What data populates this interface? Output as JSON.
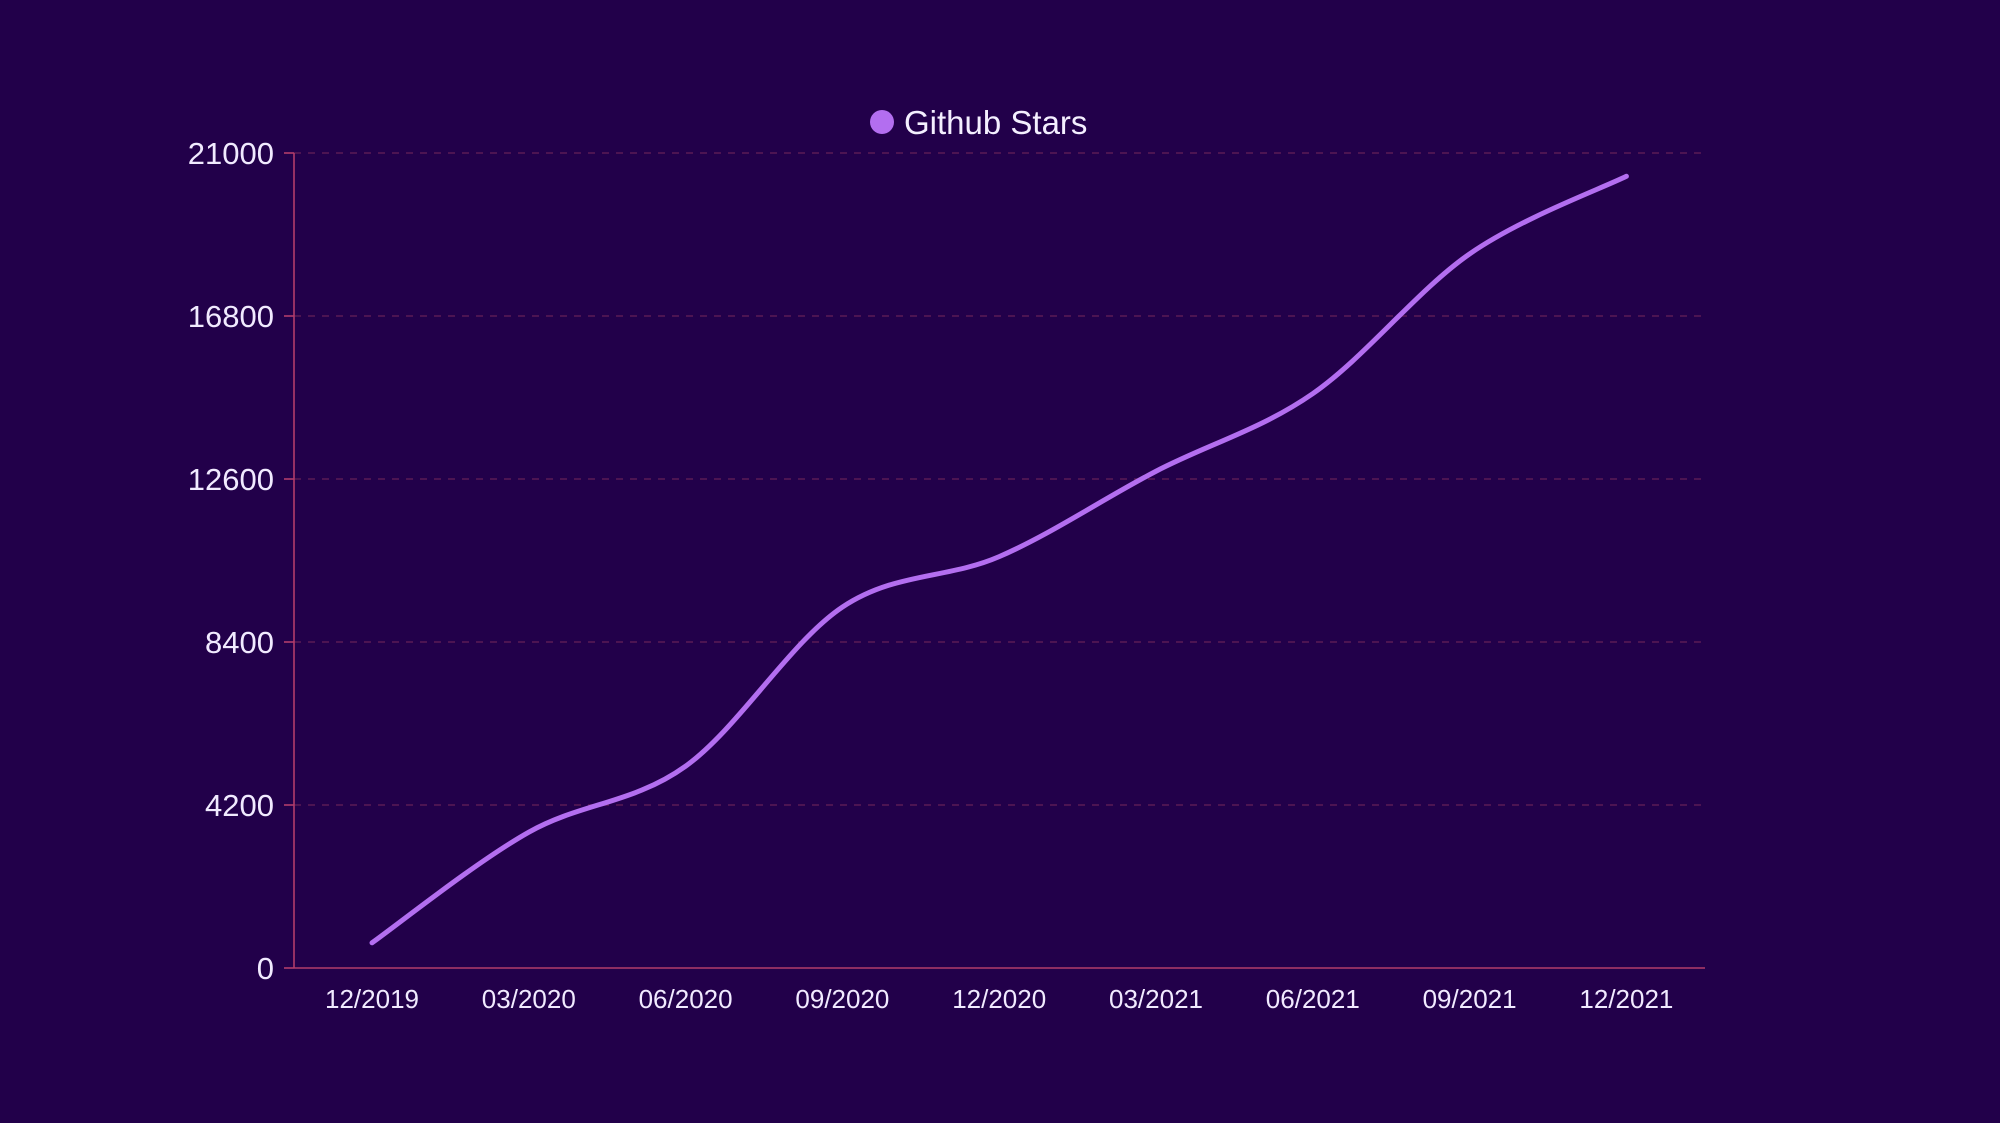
{
  "chart_data": {
    "type": "line",
    "categories": [
      "12/2019",
      "03/2020",
      "06/2020",
      "09/2020",
      "12/2020",
      "03/2021",
      "06/2021",
      "09/2021",
      "12/2021"
    ],
    "series": [
      {
        "name": "Github Stars",
        "color": "#b36ef0",
        "values": [
          650,
          3500,
          5200,
          9300,
          10600,
          12800,
          14800,
          18400,
          20400
        ]
      }
    ],
    "yticks": [
      0,
      4200,
      8400,
      12600,
      16800,
      21000
    ],
    "ylim": [
      0,
      21000
    ],
    "grid": "horizontal-dashed",
    "legend": "top-center",
    "colors": {
      "background": "#22004a",
      "axis": "#b23c6a",
      "grid": "#5a1a55",
      "text": "#f1eaff"
    }
  }
}
